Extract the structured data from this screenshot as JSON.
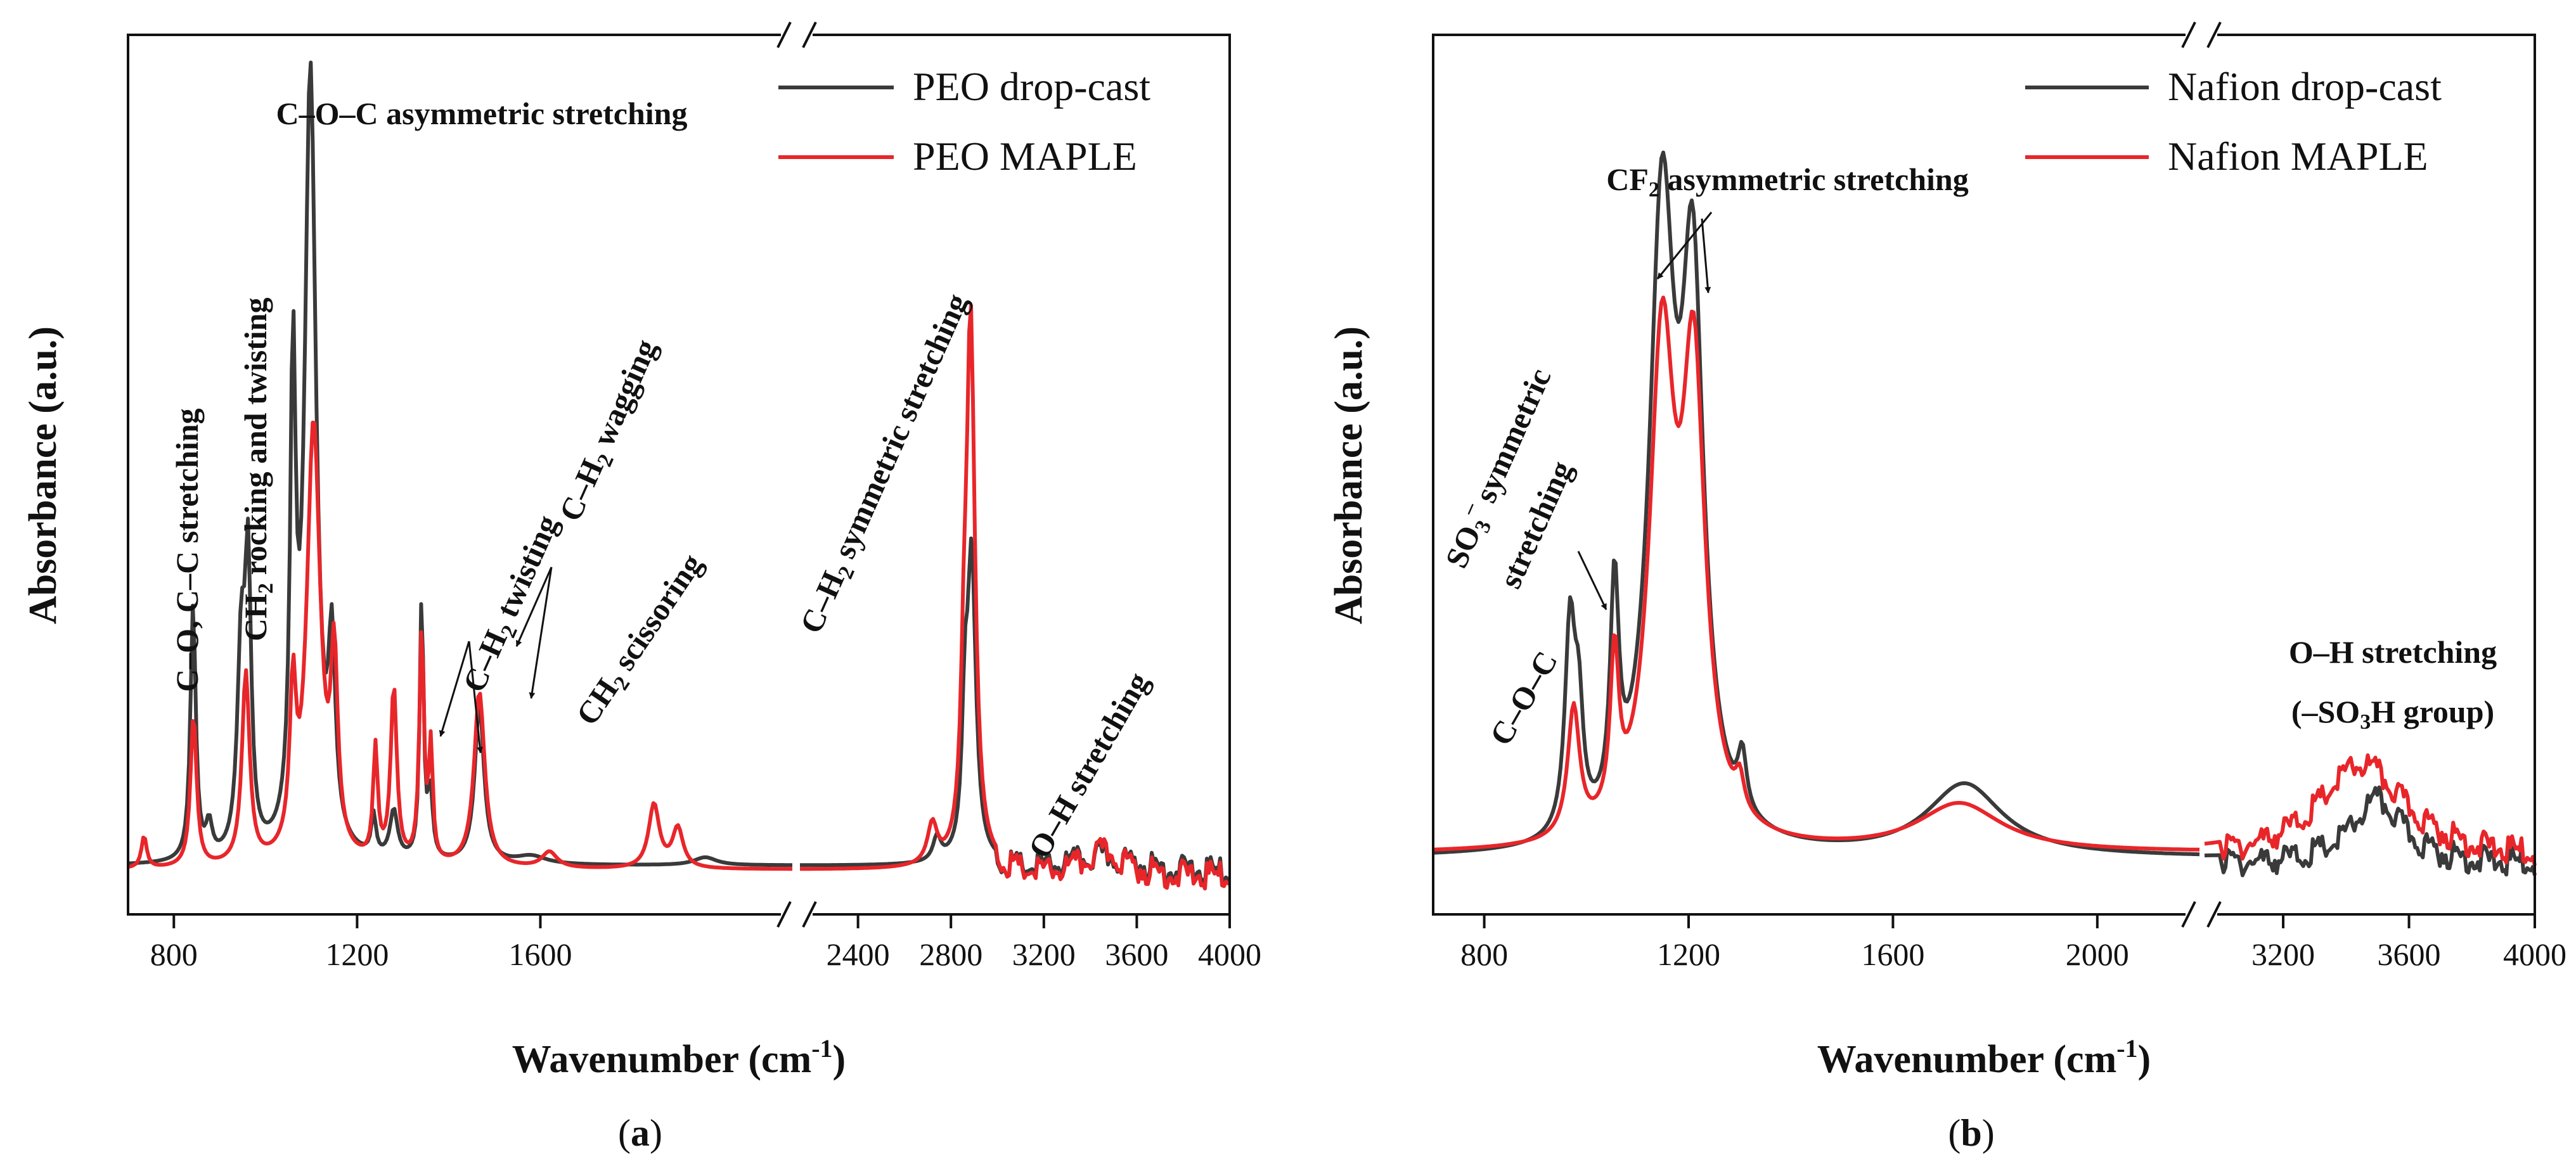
{
  "colors": {
    "drop": "#3a3a3a",
    "maple": "#e8262a",
    "axis": "#111111"
  },
  "panels": [
    {
      "sub_prefix": "(",
      "sub_letter": "a",
      "sub_suffix": ")",
      "xlabel_main": "Wavenumber (cm",
      "xlabel_sup": "-1",
      "xlabel_end": ")",
      "ylabel": "Absorbance (a.u.)"
    },
    {
      "sub_prefix": "(",
      "sub_letter": "b",
      "sub_suffix": ")",
      "xlabel_main": "Wavenumber (cm",
      "xlabel_sup": "-1",
      "xlabel_end": ")",
      "ylabel": "Absorbance (a.u.)"
    }
  ],
  "annotations_a": {
    "coc_asym": "C–O–C asymmetric stretching",
    "co_cc": "C–O, C–C stretching",
    "ch2_rock_pre": "CH",
    "ch2_rock_sub": "2",
    "ch2_rock_post": " rocking and twisting",
    "twist_pre": "C–H",
    "twist_sub": "2",
    "twist_post": " twisting",
    "wag_pre": "C–H",
    "wag_sub": "2",
    "wag_post": " wagging",
    "sciss_pre": "CH",
    "sciss_sub": "2",
    "sciss_post": " scissoring",
    "sym_pre": "C–H",
    "sym_sub": "2",
    "sym_post": " symmetric stretching",
    "oh": "O–H stretching"
  },
  "annotations_b": {
    "cf2_pre": "CF",
    "cf2_sub": "2",
    "cf2_post": " asymmetric stretching",
    "so3_pre": "SO",
    "so3_sub": "3",
    "so3_sup": "–",
    "so3_post": " symmetric",
    "so3_line2": "stretching",
    "coc": "C–O–C",
    "oh_line1": "O–H stretching",
    "oh_line2_pre": "(–SO",
    "oh_line2_sub": "3",
    "oh_line2_post": "H group)"
  },
  "chart_data": [
    {
      "type": "line",
      "panel": "a",
      "xlabel": "Wavenumber (cm-1)",
      "ylabel": "Absorbance (a.u.)",
      "x_break": true,
      "segments": [
        {
          "range": [
            700,
            2150
          ],
          "ticks": [
            800,
            1200,
            1600
          ]
        },
        {
          "range": [
            2150,
            4000
          ],
          "ticks": [
            2400,
            2800,
            3200,
            3600,
            4000
          ]
        }
      ],
      "ylim": [
        0,
        1.0
      ],
      "series": [
        {
          "name": "PEO drop-cast",
          "color": "#3a3a3a",
          "peaks": [
            [
              842,
              0.32,
              7
            ],
            [
              877,
              0.04,
              8
            ],
            [
              947,
              0.25,
              10
            ],
            [
              962,
              0.34,
              8
            ],
            [
              1060,
              0.57,
              7
            ],
            [
              1098,
              0.98,
              15
            ],
            [
              1145,
              0.23,
              9
            ],
            [
              1236,
              0.05,
              6
            ],
            [
              1280,
              0.06,
              10
            ],
            [
              1341,
              0.33,
              5
            ],
            [
              1360,
              0.08,
              6
            ],
            [
              1467,
              0.2,
              12
            ],
            [
              1580,
              0.01,
              40
            ],
            [
              1960,
              0.01,
              30
            ],
            [
              2740,
              0.03,
              20
            ],
            [
              2860,
              0.15,
              14
            ],
            [
              2889,
              0.38,
              22
            ],
            [
              3450,
              0.02,
              170
            ]
          ],
          "baseline": 0.05
        },
        {
          "name": "PEO MAPLE",
          "color": "#e8262a",
          "peaks": [
            [
              735,
              0.04,
              7
            ],
            [
              843,
              0.19,
              8
            ],
            [
              957,
              0.24,
              10
            ],
            [
              1060,
              0.19,
              8
            ],
            [
              1105,
              0.55,
              18
            ],
            [
              1150,
              0.23,
              9
            ],
            [
              1240,
              0.14,
              6
            ],
            [
              1280,
              0.22,
              8
            ],
            [
              1341,
              0.29,
              6
            ],
            [
              1361,
              0.14,
              5
            ],
            [
              1467,
              0.22,
              14
            ],
            [
              1620,
              0.02,
              20
            ],
            [
              1848,
              0.08,
              14
            ],
            [
              1900,
              0.05,
              14
            ],
            [
              2720,
              0.05,
              25
            ],
            [
              2856,
              0.15,
              15
            ],
            [
              2885,
              0.68,
              22
            ],
            [
              3460,
              0.03,
              110
            ]
          ],
          "baseline": 0.045
        }
      ],
      "legend": [
        "PEO drop-cast",
        "PEO MAPLE"
      ],
      "legend_position": "top-right",
      "annotations": [
        "C–O–C asymmetric stretching",
        "C–O, C–C stretching",
        "CH2 rocking and twisting",
        "C–H2 twisting",
        "C–H2 wagging",
        "CH2 scissoring",
        "C–H2 symmetric stretching",
        "O–H stretching"
      ]
    },
    {
      "type": "line",
      "panel": "b",
      "xlabel": "Wavenumber (cm-1)",
      "ylabel": "Absorbance (a.u.)",
      "x_break": true,
      "segments": [
        {
          "range": [
            700,
            2200
          ],
          "ticks": [
            800,
            1200,
            1600,
            2000
          ]
        },
        {
          "range": [
            2950,
            4000
          ],
          "ticks": [
            3200,
            3600,
            4000
          ]
        }
      ],
      "ylim": [
        0,
        1.0
      ],
      "series": [
        {
          "name": "Nafion drop-cast",
          "color": "#3a3a3a",
          "peaks": [
            [
              968,
              0.26,
              12
            ],
            [
              985,
              0.13,
              10
            ],
            [
              1055,
              0.28,
              10
            ],
            [
              1148,
              0.77,
              30
            ],
            [
              1208,
              0.66,
              26
            ],
            [
              1305,
              0.07,
              10
            ],
            [
              1740,
              0.09,
              90
            ],
            [
              3500,
              0.08,
              100
            ]
          ],
          "baseline": 0.06
        },
        {
          "name": "Nafion MAPLE",
          "color": "#e8262a",
          "peaks": [
            [
              975,
              0.16,
              14
            ],
            [
              1055,
              0.2,
              10
            ],
            [
              1148,
              0.6,
              30
            ],
            [
              1210,
              0.56,
              27
            ],
            [
              1300,
              0.04,
              10
            ],
            [
              1730,
              0.06,
              100
            ],
            [
              3450,
              0.12,
              170
            ]
          ],
          "baseline": 0.065
        }
      ],
      "legend": [
        "Nafion drop-cast",
        "Nafion MAPLE"
      ],
      "legend_position": "top-right",
      "annotations": [
        "CF2 asymmetric stretching",
        "SO3– symmetric stretching",
        "C–O–C",
        "O–H stretching (–SO3H group)"
      ]
    }
  ]
}
